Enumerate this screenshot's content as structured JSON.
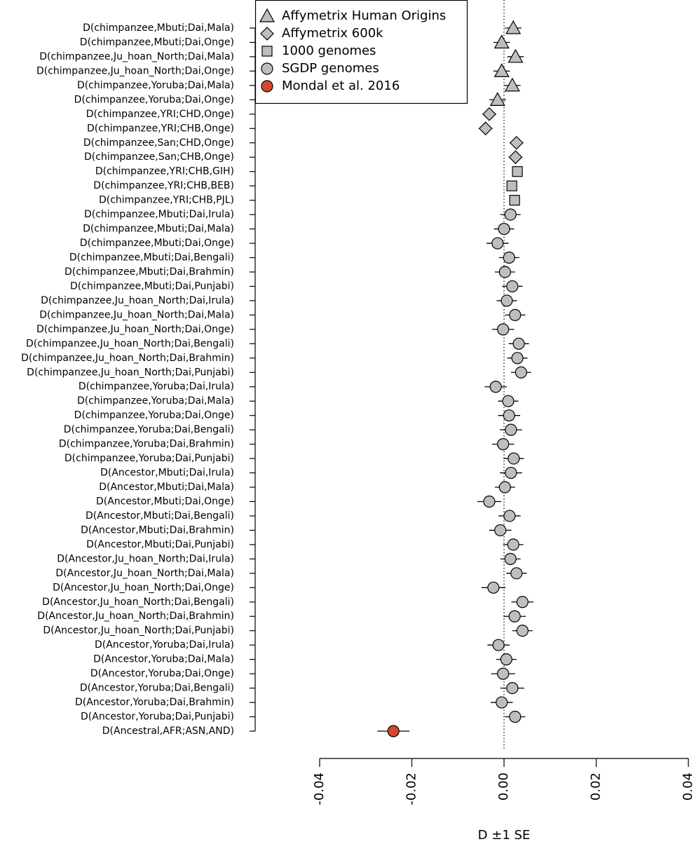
{
  "chart_data": {
    "type": "forest",
    "x_label": "D ±1 SE",
    "categories": [
      "D(chimpanzee,Mbuti;Dai,Mala)",
      "D(chimpanzee,Mbuti;Dai,Onge)",
      "D(chimpanzee,Ju_hoan_North;Dai,Mala)",
      "D(chimpanzee,Ju_hoan_North;Dai,Onge)",
      "D(chimpanzee,Yoruba;Dai,Mala)",
      "D(chimpanzee,Yoruba;Dai,Onge)",
      "D(chimpanzee,YRI;CHD,Onge)",
      "D(chimpanzee,YRI;CHB,Onge)",
      "D(chimpanzee,San;CHD,Onge)",
      "D(chimpanzee,San;CHB,Onge)",
      "D(chimpanzee,YRI;CHB,GIH)",
      "D(chimpanzee,YRI;CHB,BEB)",
      "D(chimpanzee,YRI;CHB,PJL)",
      "D(chimpanzee,Mbuti;Dai,Irula)",
      "D(chimpanzee,Mbuti;Dai,Mala)",
      "D(chimpanzee,Mbuti;Dai,Onge)",
      "D(chimpanzee,Mbuti;Dai,Bengali)",
      "D(chimpanzee,Mbuti;Dai,Brahmin)",
      "D(chimpanzee,Mbuti;Dai,Punjabi)",
      "D(chimpanzee,Ju_hoan_North;Dai,Irula)",
      "D(chimpanzee,Ju_hoan_North;Dai,Mala)",
      "D(chimpanzee,Ju_hoan_North;Dai,Onge)",
      "D(chimpanzee,Ju_hoan_North;Dai,Bengali)",
      "D(chimpanzee,Ju_hoan_North;Dai,Brahmin)",
      "D(chimpanzee,Ju_hoan_North;Dai,Punjabi)",
      "D(chimpanzee,Yoruba;Dai,Irula)",
      "D(chimpanzee,Yoruba;Dai,Mala)",
      "D(chimpanzee,Yoruba;Dai,Onge)",
      "D(chimpanzee,Yoruba;Dai,Bengali)",
      "D(chimpanzee,Yoruba;Dai,Brahmin)",
      "D(chimpanzee,Yoruba;Dai,Punjabi)",
      "D(Ancestor,Mbuti;Dai,Irula)",
      "D(Ancestor,Mbuti;Dai,Mala)",
      "D(Ancestor,Mbuti;Dai,Onge)",
      "D(Ancestor,Mbuti;Dai,Bengali)",
      "D(Ancestor,Mbuti;Dai,Brahmin)",
      "D(Ancestor,Mbuti;Dai,Punjabi)",
      "D(Ancestor,Ju_hoan_North;Dai,Irula)",
      "D(Ancestor,Ju_hoan_North;Dai,Mala)",
      "D(Ancestor,Ju_hoan_North;Dai,Onge)",
      "D(Ancestor,Ju_hoan_North;Dai,Bengali)",
      "D(Ancestor,Ju_hoan_North;Dai,Brahmin)",
      "D(Ancestor,Ju_hoan_North;Dai,Punjabi)",
      "D(Ancestor,Yoruba;Dai,Irula)",
      "D(Ancestor,Yoruba;Dai,Mala)",
      "D(Ancestor,Yoruba;Dai,Onge)",
      "D(Ancestor,Yoruba;Dai,Bengali)",
      "D(Ancestor,Yoruba;Dai,Brahmin)",
      "D(Ancestor,Yoruba;Dai,Punjabi)",
      "D(Ancestral,AFR;ASN,AND)"
    ],
    "series": [
      {
        "name": "Affymetrix Human Origins",
        "marker": "triangle",
        "color": "#bebebe",
        "values": [
          0.002,
          -0.0005,
          0.0025,
          -0.0005,
          0.0018,
          -0.0014,
          null,
          null,
          null,
          null,
          null,
          null,
          null,
          null,
          null,
          null,
          null,
          null,
          null,
          null,
          null,
          null,
          null,
          null,
          null,
          null,
          null,
          null,
          null,
          null,
          null,
          null,
          null,
          null,
          null,
          null,
          null,
          null,
          null,
          null,
          null,
          null,
          null,
          null,
          null,
          null,
          null,
          null,
          null,
          null
        ],
        "errors": [
          0.0018,
          0.0018,
          0.0018,
          0.0018,
          0.0018,
          0.0018,
          null,
          null,
          null,
          null,
          null,
          null,
          null,
          null,
          null,
          null,
          null,
          null,
          null,
          null,
          null,
          null,
          null,
          null,
          null,
          null,
          null,
          null,
          null,
          null,
          null,
          null,
          null,
          null,
          null,
          null,
          null,
          null,
          null,
          null,
          null,
          null,
          null,
          null,
          null,
          null,
          null,
          null,
          null,
          null
        ]
      },
      {
        "name": "Affymetrix 600k",
        "marker": "diamond",
        "color": "#bebebe",
        "values": [
          null,
          null,
          null,
          null,
          null,
          null,
          -0.0032,
          -0.004,
          0.0027,
          0.0025,
          null,
          null,
          null,
          null,
          null,
          null,
          null,
          null,
          null,
          null,
          null,
          null,
          null,
          null,
          null,
          null,
          null,
          null,
          null,
          null,
          null,
          null,
          null,
          null,
          null,
          null,
          null,
          null,
          null,
          null,
          null,
          null,
          null,
          null,
          null,
          null,
          null,
          null,
          null,
          null
        ],
        "errors": [
          null,
          null,
          null,
          null,
          null,
          null,
          0.0015,
          0.0015,
          0.0015,
          0.0015,
          null,
          null,
          null,
          null,
          null,
          null,
          null,
          null,
          null,
          null,
          null,
          null,
          null,
          null,
          null,
          null,
          null,
          null,
          null,
          null,
          null,
          null,
          null,
          null,
          null,
          null,
          null,
          null,
          null,
          null,
          null,
          null,
          null,
          null,
          null,
          null,
          null,
          null,
          null,
          null
        ]
      },
      {
        "name": "1000 genomes",
        "marker": "square",
        "color": "#bebebe",
        "values": [
          null,
          null,
          null,
          null,
          null,
          null,
          null,
          null,
          null,
          null,
          0.0029,
          0.0017,
          0.0023,
          null,
          null,
          null,
          null,
          null,
          null,
          null,
          null,
          null,
          null,
          null,
          null,
          null,
          null,
          null,
          null,
          null,
          null,
          null,
          null,
          null,
          null,
          null,
          null,
          null,
          null,
          null,
          null,
          null,
          null,
          null,
          null,
          null,
          null,
          null,
          null,
          null
        ],
        "errors": [
          null,
          null,
          null,
          null,
          null,
          null,
          null,
          null,
          null,
          null,
          0.001,
          0.001,
          0.001,
          null,
          null,
          null,
          null,
          null,
          null,
          null,
          null,
          null,
          null,
          null,
          null,
          null,
          null,
          null,
          null,
          null,
          null,
          null,
          null,
          null,
          null,
          null,
          null,
          null,
          null,
          null,
          null,
          null,
          null,
          null,
          null,
          null,
          null,
          null,
          null,
          null
        ]
      },
      {
        "name": "SGDP genomes",
        "marker": "circle",
        "color": "#bebebe",
        "values": [
          null,
          null,
          null,
          null,
          null,
          null,
          null,
          null,
          null,
          null,
          null,
          null,
          null,
          0.0014,
          0.0,
          -0.0014,
          0.0011,
          0.0002,
          0.0018,
          0.0006,
          0.0024,
          -0.0002,
          0.0032,
          0.0029,
          0.0037,
          -0.0018,
          0.0009,
          0.0011,
          0.0015,
          -0.0002,
          0.0021,
          0.0015,
          0.0002,
          -0.0032,
          0.0012,
          -0.0008,
          0.002,
          0.0014,
          0.0027,
          -0.0023,
          0.004,
          0.0023,
          0.004,
          -0.0012,
          0.0005,
          -0.0002,
          0.0018,
          -0.0005,
          0.0024,
          null
        ],
        "errors": [
          null,
          null,
          null,
          null,
          null,
          null,
          null,
          null,
          null,
          null,
          null,
          null,
          null,
          0.0022,
          0.0022,
          0.0024,
          0.0022,
          0.0022,
          0.0022,
          0.0022,
          0.0022,
          0.0024,
          0.0022,
          0.0022,
          0.0022,
          0.0024,
          0.0022,
          0.0024,
          0.0024,
          0.0024,
          0.0022,
          0.0024,
          0.0022,
          0.0026,
          0.0024,
          0.0024,
          0.0022,
          0.0022,
          0.0022,
          0.0026,
          0.0024,
          0.0024,
          0.0022,
          0.0024,
          0.0022,
          0.0026,
          0.0026,
          0.0024,
          0.0022,
          null
        ]
      },
      {
        "name": "Mondal et al. 2016",
        "marker": "circle",
        "color": "#d2492f",
        "values": [
          null,
          null,
          null,
          null,
          null,
          null,
          null,
          null,
          null,
          null,
          null,
          null,
          null,
          null,
          null,
          null,
          null,
          null,
          null,
          null,
          null,
          null,
          null,
          null,
          null,
          null,
          null,
          null,
          null,
          null,
          null,
          null,
          null,
          null,
          null,
          null,
          null,
          null,
          null,
          null,
          null,
          null,
          null,
          null,
          null,
          null,
          null,
          null,
          null,
          -0.024
        ],
        "errors": [
          null,
          null,
          null,
          null,
          null,
          null,
          null,
          null,
          null,
          null,
          null,
          null,
          null,
          null,
          null,
          null,
          null,
          null,
          null,
          null,
          null,
          null,
          null,
          null,
          null,
          null,
          null,
          null,
          null,
          null,
          null,
          null,
          null,
          null,
          null,
          null,
          null,
          null,
          null,
          null,
          null,
          null,
          null,
          null,
          null,
          null,
          null,
          null,
          null,
          0.0035
        ]
      }
    ],
    "xlim": [
      -0.04,
      0.04
    ],
    "xticks": [
      -0.04,
      -0.02,
      {
        "value": 0,
        "label": "0.00"
      },
      0.02,
      0.04
    ],
    "reference_line": 0,
    "legend": "topleft"
  }
}
